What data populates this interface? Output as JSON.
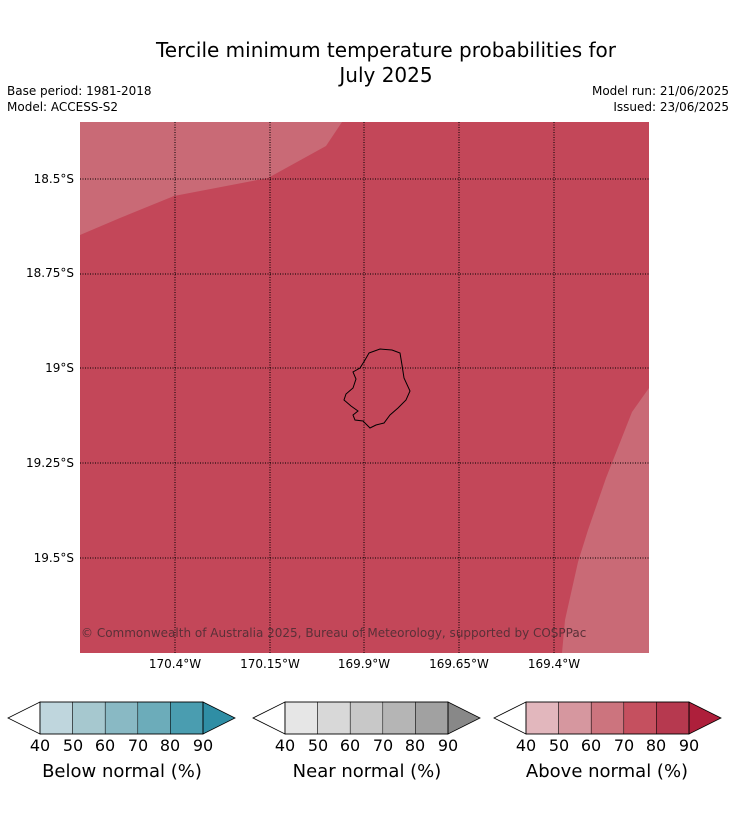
{
  "title_line1": "Tercile minimum temperature probabilities for",
  "title_line2": "July 2025",
  "base_period": "Base period: 1981-2018",
  "model": "Model: ACCESS-S2",
  "model_run": "Model run: 21/06/2025",
  "issued": "Issued: 23/06/2025",
  "lat_labels": [
    "18.5°S",
    "18.75°S",
    "19°S",
    "19.25°S",
    "19.5°S"
  ],
  "lon_labels": [
    "170.4°W",
    "170.15°W",
    "169.9°W",
    "169.65°W",
    "169.4°W"
  ],
  "copyright": "© Commonwealth of Australia 2025, Bureau of Meteorology, supported by COSPPac",
  "colorbars": [
    {
      "label": "Below normal (%)",
      "ticks": [
        "40",
        "50",
        "60",
        "70",
        "80",
        "90"
      ],
      "colors": [
        "#bfd6dd",
        "#a6c8cf",
        "#89b9c4",
        "#6cacba",
        "#4a9db0",
        "#2f8ea5"
      ]
    },
    {
      "label": "Near normal (%)",
      "ticks": [
        "40",
        "50",
        "60",
        "70",
        "80",
        "90"
      ],
      "colors": [
        "#e6e6e6",
        "#d8d8d8",
        "#c8c8c8",
        "#b5b5b5",
        "#a1a1a1",
        "#888888"
      ]
    },
    {
      "label": "Above normal (%)",
      "ticks": [
        "40",
        "50",
        "60",
        "70",
        "80",
        "90"
      ],
      "colors": [
        "#e2b7bd",
        "#d6979f",
        "#cc747e",
        "#c5505f",
        "#b6394f",
        "#ae1f3b"
      ]
    }
  ],
  "fill_colors": {
    "main": "#c34759",
    "light": "#c96a76"
  }
}
